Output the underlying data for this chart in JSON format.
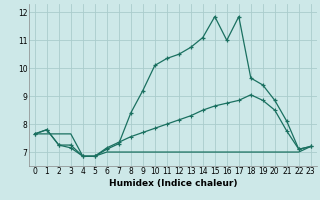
{
  "xlabel": "Humidex (Indice chaleur)",
  "bg_color": "#cde8e8",
  "grid_color": "#aacccc",
  "line_color": "#1a7060",
  "xlim": [
    -0.5,
    23.5
  ],
  "ylim": [
    6.5,
    12.3
  ],
  "xticks": [
    0,
    1,
    2,
    3,
    4,
    5,
    6,
    7,
    8,
    9,
    10,
    11,
    12,
    13,
    14,
    15,
    16,
    17,
    18,
    19,
    20,
    21,
    22,
    23
  ],
  "yticks": [
    7,
    8,
    9,
    10,
    11,
    12
  ],
  "s1_x": [
    0,
    1,
    2,
    3,
    4,
    5,
    6,
    7,
    8,
    9,
    10,
    11,
    12,
    13,
    14,
    15,
    16,
    17,
    18,
    19,
    20,
    21,
    22,
    23
  ],
  "s1_y": [
    7.65,
    7.8,
    7.25,
    7.25,
    6.85,
    6.85,
    7.1,
    7.3,
    8.4,
    9.2,
    10.1,
    10.35,
    10.5,
    10.75,
    11.1,
    11.85,
    11.0,
    11.85,
    9.65,
    9.4,
    8.85,
    8.1,
    7.1,
    7.2
  ],
  "s2_x": [
    0,
    1,
    2,
    3,
    4,
    5,
    6,
    7,
    8,
    9,
    10,
    11,
    12,
    13,
    14,
    15,
    16,
    17,
    18,
    19,
    20,
    21,
    22,
    23
  ],
  "s2_y": [
    7.65,
    7.8,
    7.25,
    7.15,
    6.85,
    6.85,
    7.15,
    7.35,
    7.55,
    7.7,
    7.85,
    8.0,
    8.15,
    8.3,
    8.5,
    8.65,
    8.75,
    8.85,
    9.05,
    8.85,
    8.5,
    7.75,
    7.1,
    7.2
  ],
  "s3_x": [
    0,
    1,
    2,
    3,
    4,
    5,
    6,
    7,
    8,
    9,
    10,
    11,
    12,
    13,
    14,
    15,
    16,
    17,
    18,
    19,
    20,
    21,
    22,
    23
  ],
  "s3_y": [
    7.65,
    7.65,
    7.65,
    7.65,
    6.85,
    6.85,
    7.0,
    7.0,
    7.0,
    7.0,
    7.0,
    7.0,
    7.0,
    7.0,
    7.0,
    7.0,
    7.0,
    7.0,
    7.0,
    7.0,
    7.0,
    7.0,
    7.0,
    7.2
  ]
}
